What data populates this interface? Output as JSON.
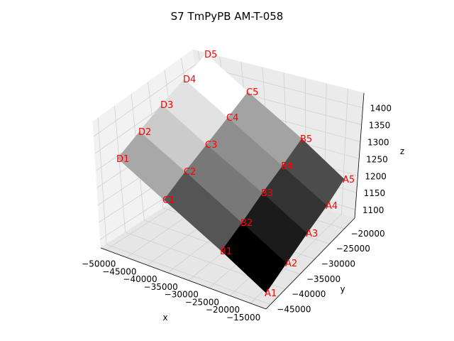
{
  "chart_data": {
    "type": "surface",
    "title": "S7 TmPyPB AM-T-058",
    "xlabel": "x",
    "ylabel": "y",
    "zlabel": "z",
    "x_ticks": [
      "−50000",
      "−45000",
      "−40000",
      "−35000",
      "−30000",
      "−25000",
      "−20000",
      "−15000"
    ],
    "y_ticks": [
      "−45000",
      "−40000",
      "−35000",
      "−30000",
      "−25000",
      "−20000"
    ],
    "z_ticks": [
      "1100",
      "1150",
      "1200",
      "1250",
      "1300",
      "1350",
      "1400"
    ],
    "grid": true,
    "colormap": "gray",
    "rows": [
      "A",
      "B",
      "C",
      "D"
    ],
    "cols": [
      1,
      2,
      3,
      4,
      5
    ],
    "quad_shades": [
      [
        "#000000",
        "#1b1b1b",
        "#333333",
        "#4c4c4c"
      ],
      [
        "#555555",
        "#787878",
        "#8e8e8e",
        "#a3a3a3"
      ],
      [
        "#a8a8a8",
        "#cbcbcb",
        "#e2e2e2",
        "#ffffff"
      ]
    ],
    "point_labels": [
      "A1",
      "A2",
      "A3",
      "A4",
      "A5",
      "B1",
      "B2",
      "B3",
      "B4",
      "B5",
      "C1",
      "C2",
      "C3",
      "C4",
      "C5",
      "D1",
      "D2",
      "D3",
      "D4",
      "D5"
    ]
  }
}
